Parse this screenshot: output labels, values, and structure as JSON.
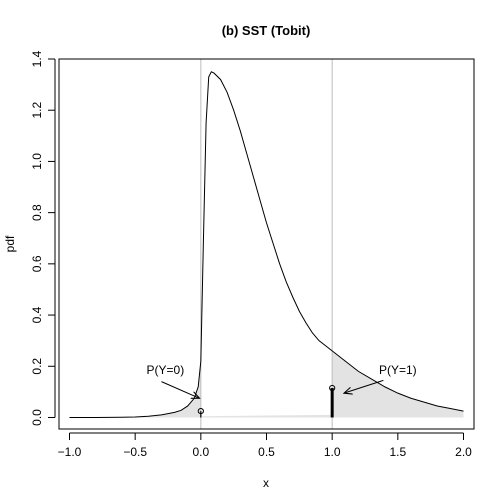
{
  "chart_data": {
    "type": "line",
    "title": "(b) SST (Tobit)",
    "xlabel": "x",
    "ylabel": "pdf",
    "xlim": [
      -1.08,
      2.08
    ],
    "ylim": [
      -0.045,
      1.4
    ],
    "x_ticks": [
      -1.0,
      -0.5,
      0.0,
      0.5,
      1.0,
      1.5,
      2.0
    ],
    "x_tick_labels": [
      "−1.0",
      "−0.5",
      "0.0",
      "0.5",
      "1.0",
      "1.5",
      "2.0"
    ],
    "y_ticks": [
      0.0,
      0.2,
      0.4,
      0.6,
      0.8,
      1.0,
      1.2,
      1.4
    ],
    "y_tick_labels": [
      "0.0",
      "0.2",
      "0.4",
      "0.6",
      "0.8",
      "1.0",
      "1.2",
      "1.4"
    ],
    "grid": false,
    "reference_lines_x": [
      0.0,
      1.0
    ],
    "density_curve": {
      "x": [
        -1.0,
        -0.8,
        -0.6,
        -0.5,
        -0.4,
        -0.3,
        -0.2,
        -0.15,
        -0.1,
        -0.05,
        -0.02,
        0.0,
        0.02,
        0.04,
        0.06,
        0.08,
        0.1,
        0.15,
        0.2,
        0.25,
        0.3,
        0.35,
        0.4,
        0.45,
        0.5,
        0.55,
        0.6,
        0.65,
        0.7,
        0.75,
        0.8,
        0.85,
        0.9,
        0.95,
        1.0,
        1.1,
        1.2,
        1.3,
        1.4,
        1.5,
        1.6,
        1.7,
        1.8,
        1.9,
        2.0
      ],
      "y": [
        0.0,
        0.0,
        0.001,
        0.002,
        0.005,
        0.01,
        0.02,
        0.028,
        0.045,
        0.075,
        0.12,
        0.22,
        0.7,
        1.15,
        1.33,
        1.35,
        1.345,
        1.32,
        1.27,
        1.2,
        1.12,
        1.03,
        0.94,
        0.85,
        0.76,
        0.68,
        0.6,
        0.53,
        0.47,
        0.415,
        0.37,
        0.33,
        0.3,
        0.28,
        0.26,
        0.22,
        0.18,
        0.15,
        0.12,
        0.095,
        0.075,
        0.06,
        0.045,
        0.035,
        0.025
      ]
    },
    "shaded_regions": [
      {
        "name": "left-tail",
        "x_from": -1.0,
        "x_to": 0.0
      },
      {
        "name": "right-tail",
        "x_from": 1.0,
        "x_to": 2.0
      }
    ],
    "shaded_wedge": {
      "x": [
        0.0,
        1.0
      ],
      "y_top": [
        0.005,
        0.01
      ]
    },
    "point_masses": [
      {
        "x": 0.0,
        "y": 0.025,
        "line_width": "thin"
      },
      {
        "x": 1.0,
        "y": 0.115,
        "line_width": "thick"
      }
    ],
    "annotations": [
      {
        "text": "P(Y=0)",
        "text_x": -0.27,
        "text_y": 0.17,
        "arrow_from": [
          -0.3,
          0.14
        ],
        "arrow_to": [
          -0.01,
          0.075
        ]
      },
      {
        "text": "P(Y=1)",
        "text_x": 1.5,
        "text_y": 0.17,
        "arrow_from": [
          1.39,
          0.145
        ],
        "arrow_to": [
          1.09,
          0.095
        ]
      }
    ]
  }
}
